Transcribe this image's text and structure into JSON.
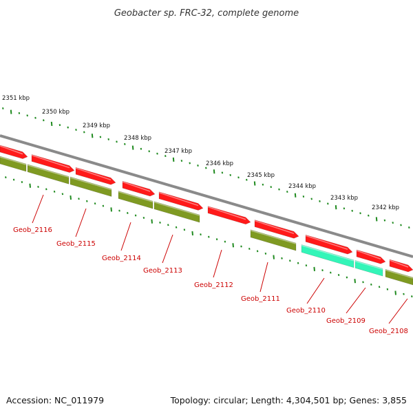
{
  "title": "Geobacter sp. FRC-32, complete genome",
  "footer": {
    "accession": "Accession: NC_011979",
    "summary": "Topology: circular; Length: 4,304,501 bp; Genes: 3,855"
  },
  "colors": {
    "backbone": "#8a8a8a",
    "forward_gene": "#ff1a1a",
    "reverse_gene": "#7f9a22",
    "highlight_gene": "#33f5b8",
    "tick": "#1f8a1f",
    "label": "#cc0000"
  },
  "ruler": {
    "unit": "kbp",
    "labels": [
      "2351 kbp",
      "2350 kbp",
      "2349 kbp",
      "2348 kbp",
      "2347 kbp",
      "2346 kbp",
      "2345 kbp",
      "2344 kbp",
      "2343 kbp",
      "2342 kbp"
    ]
  },
  "genes": [
    {
      "name": "Geob_2116",
      "strand": "reverse"
    },
    {
      "name": "Geob_2115",
      "strand": "reverse"
    },
    {
      "name": "Geob_2114",
      "strand": "reverse"
    },
    {
      "name": "Geob_2113",
      "strand": "reverse"
    },
    {
      "name": "Geob_2112",
      "strand": "forward"
    },
    {
      "name": "Geob_2111",
      "strand": "reverse"
    },
    {
      "name": "Geob_2110",
      "strand": "reverse",
      "highlight": true
    },
    {
      "name": "Geob_2109",
      "strand": "reverse",
      "highlight": true
    },
    {
      "name": "Geob_2108",
      "strand": "reverse"
    }
  ]
}
